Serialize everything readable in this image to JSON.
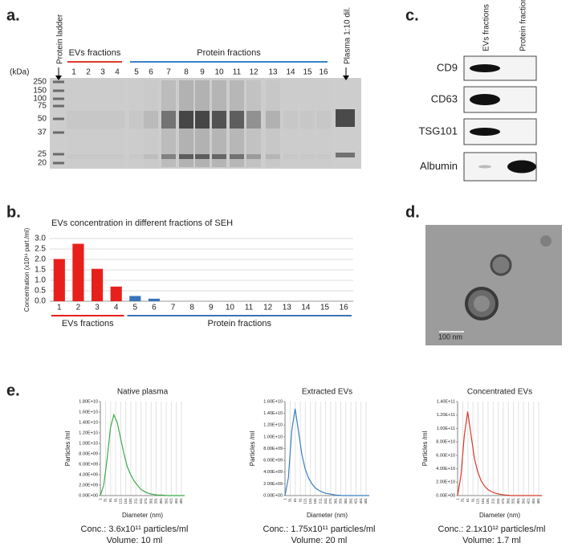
{
  "panel_labels": [
    "a.",
    "b.",
    "c.",
    "d.",
    "e."
  ],
  "gel": {
    "lane_labels": [
      "Protein ladder",
      "Plasma 1:10 dil."
    ],
    "groups": [
      {
        "name": "EVs fractions",
        "color": "#e03a2f"
      },
      {
        "name": "Protein fractions",
        "color": "#3b82c4"
      }
    ],
    "lanes": [
      "1",
      "2",
      "3",
      "4",
      "5",
      "6",
      "7",
      "8",
      "9",
      "10",
      "11",
      "12",
      "13",
      "14",
      "15",
      "16"
    ],
    "unit": "(kDa)",
    "markers": [
      "250",
      "150",
      "100",
      "75",
      "50",
      "37",
      "25",
      "20"
    ]
  },
  "blot": {
    "columns": [
      "EVs fractions",
      "Protein fractions"
    ],
    "rows": [
      "CD9",
      "CD63",
      "TSG101",
      "Albumin"
    ]
  },
  "tem": {
    "scale": "100 nm"
  },
  "chart_data": [
    {
      "type": "bar",
      "title": "EVs concentration in different fractions of SEH",
      "ylabel": "Concentration (x10¹¹ part./ml)",
      "categories": [
        "1",
        "2",
        "3",
        "4",
        "5",
        "6",
        "7",
        "8",
        "9",
        "10",
        "11",
        "12",
        "13",
        "14",
        "15",
        "16"
      ],
      "series": [
        {
          "name": "EVs fractions",
          "color": "#e8201c",
          "values": [
            2.02,
            2.75,
            1.55,
            0.7,
            null,
            null,
            null,
            null,
            null,
            null,
            null,
            null,
            null,
            null,
            null,
            null
          ]
        },
        {
          "name": "Protein fractions",
          "color": "#3b73b9",
          "values": [
            null,
            null,
            null,
            null,
            0.25,
            0.12,
            0,
            0,
            0,
            0,
            0,
            0,
            0,
            0,
            0,
            0
          ]
        }
      ],
      "ylim": [
        0,
        3
      ],
      "yticks": [
        {
          "value": 0,
          "label": "0.0"
        },
        0.5,
        {
          "value": 1,
          "label": "1.0"
        },
        1.5,
        {
          "value": 2,
          "label": "2.0"
        },
        2.5,
        {
          "value": 3,
          "label": "3.0"
        }
      ],
      "grid": true
    },
    {
      "type": "line",
      "title": "Native plasma",
      "xlabel": "Diameter (nm)",
      "ylabel": "Particles /ml",
      "x": [
        0,
        20,
        40,
        60,
        80,
        100,
        120,
        140,
        160,
        180,
        200,
        220,
        240,
        260,
        280,
        300,
        320,
        340,
        360,
        380,
        400,
        420,
        440,
        460,
        480,
        500
      ],
      "series": [
        {
          "color": "#3daa4a",
          "values": [
            0,
            2000000000.0,
            7000000000.0,
            13000000000.0,
            15500000000.0,
            14000000000.0,
            11000000000.0,
            8000000000.0,
            5500000000.0,
            4000000000.0,
            2800000000.0,
            2000000000.0,
            1200000000.0,
            800000000.0,
            500000000.0,
            300000000.0,
            200000000.0,
            100000000.0,
            100000000.0,
            50000000.0,
            0,
            0,
            0,
            0,
            0,
            0
          ]
        }
      ],
      "xlim": [
        0,
        500
      ],
      "xticks": [
        1,
        31,
        61,
        91,
        121,
        151,
        181,
        211,
        241,
        271,
        301,
        331,
        361,
        391,
        421,
        451,
        481
      ],
      "ylim": [
        0,
        18000000000.0
      ],
      "yticks": [
        {
          "value": 0,
          "label": "0.00E+00"
        },
        {
          "value": 2000000000.0,
          "label": "2.00E+09"
        },
        {
          "value": 4000000000.0,
          "label": "4.00E+09"
        },
        {
          "value": 6000000000.0,
          "label": "6.00E+09"
        },
        {
          "value": 8000000000.0,
          "label": "8.00E+09"
        },
        {
          "value": 10000000000.0,
          "label": "1.00E+10"
        },
        {
          "value": 12000000000.0,
          "label": "1.20E+10"
        },
        {
          "value": 14000000000.0,
          "label": "1.40E+10"
        },
        {
          "value": 16000000000.0,
          "label": "1.60E+10"
        },
        {
          "value": 18000000000.0,
          "label": "1.80E+10"
        }
      ],
      "grid": true,
      "annotations": [
        "Conc.: 3.6x10¹¹ particles/ml",
        "Volume: 10 ml"
      ]
    },
    {
      "type": "line",
      "title": "Extracted EVs",
      "xlabel": "Diameter (nm)",
      "ylabel": "Particles /ml",
      "x": [
        0,
        20,
        40,
        60,
        80,
        100,
        120,
        140,
        160,
        180,
        200,
        220,
        240,
        260,
        280,
        300,
        320,
        340,
        360,
        380,
        400,
        420,
        440,
        460,
        480,
        500
      ],
      "series": [
        {
          "color": "#3a7fc1",
          "values": [
            0,
            3000000000.0,
            11000000000.0,
            14800000000.0,
            11000000000.0,
            7000000000.0,
            4500000000.0,
            3000000000.0,
            2000000000.0,
            1300000000.0,
            900000000.0,
            600000000.0,
            400000000.0,
            300000000.0,
            200000000.0,
            100000000.0,
            50000000.0,
            0,
            0,
            0,
            0,
            0,
            0,
            0,
            0,
            0
          ]
        }
      ],
      "xlim": [
        0,
        500
      ],
      "xticks": [
        1,
        31,
        61,
        91,
        121,
        151,
        181,
        211,
        241,
        271,
        301,
        331,
        361,
        391,
        421,
        451,
        481
      ],
      "ylim": [
        0,
        16000000000.0
      ],
      "yticks": [
        {
          "value": 0,
          "label": "0.00E+00"
        },
        {
          "value": 2000000000.0,
          "label": "2.00E+09"
        },
        {
          "value": 4000000000.0,
          "label": "4.00E+09"
        },
        {
          "value": 6000000000.0,
          "label": "6.00E+09"
        },
        {
          "value": 8000000000.0,
          "label": "8.00E+09"
        },
        {
          "value": 10000000000.0,
          "label": "1.00E+10"
        },
        {
          "value": 12000000000.0,
          "label": "1.20E+10"
        },
        {
          "value": 14000000000.0,
          "label": "1.40E+10"
        },
        {
          "value": 16000000000.0,
          "label": "1.60E+10"
        }
      ],
      "grid": true,
      "annotations": [
        "Conc.: 1.75x10¹¹ particles/ml",
        "Volume: 20 ml"
      ]
    },
    {
      "type": "line",
      "title": "Concentrated EVs",
      "xlabel": "Diameter (nm)",
      "ylabel": "Particles /ml",
      "x": [
        0,
        20,
        40,
        60,
        80,
        100,
        120,
        140,
        160,
        180,
        200,
        220,
        240,
        260,
        280,
        300,
        320,
        340,
        360,
        380,
        400,
        420,
        440,
        460,
        480,
        500
      ],
      "series": [
        {
          "color": "#d43a2a",
          "values": [
            0,
            30000000000.0,
            90000000000.0,
            125000000000.0,
            90000000000.0,
            55000000000.0,
            35000000000.0,
            22000000000.0,
            14000000000.0,
            9000000000.0,
            6000000000.0,
            4000000000.0,
            2500000000.0,
            1500000000.0,
            1000000000.0,
            500000000.0,
            0,
            0,
            0,
            0,
            0,
            0,
            0,
            0,
            0,
            0
          ]
        }
      ],
      "xlim": [
        0,
        500
      ],
      "xticks": [
        1,
        31,
        61,
        91,
        121,
        151,
        181,
        211,
        241,
        271,
        301,
        331,
        361,
        391,
        421,
        451,
        481
      ],
      "ylim": [
        0,
        140000000000.0
      ],
      "yticks": [
        {
          "value": 0,
          "label": "0.00E+00"
        },
        {
          "value": 20000000000.0,
          "label": "2.00E+10"
        },
        {
          "value": 40000000000.0,
          "label": "4.00E+10"
        },
        {
          "value": 60000000000.0,
          "label": "6.00E+10"
        },
        {
          "value": 80000000000.0,
          "label": "8.00E+10"
        },
        {
          "value": 100000000000.0,
          "label": "1.00E+11"
        },
        {
          "value": 120000000000.0,
          "label": "1.20E+11"
        },
        {
          "value": 140000000000.0,
          "label": "1.40E+11"
        }
      ],
      "grid": true,
      "annotations": [
        "Conc.: 2.1x10¹² particles/ml",
        "Volume: 1.7 ml"
      ]
    }
  ]
}
